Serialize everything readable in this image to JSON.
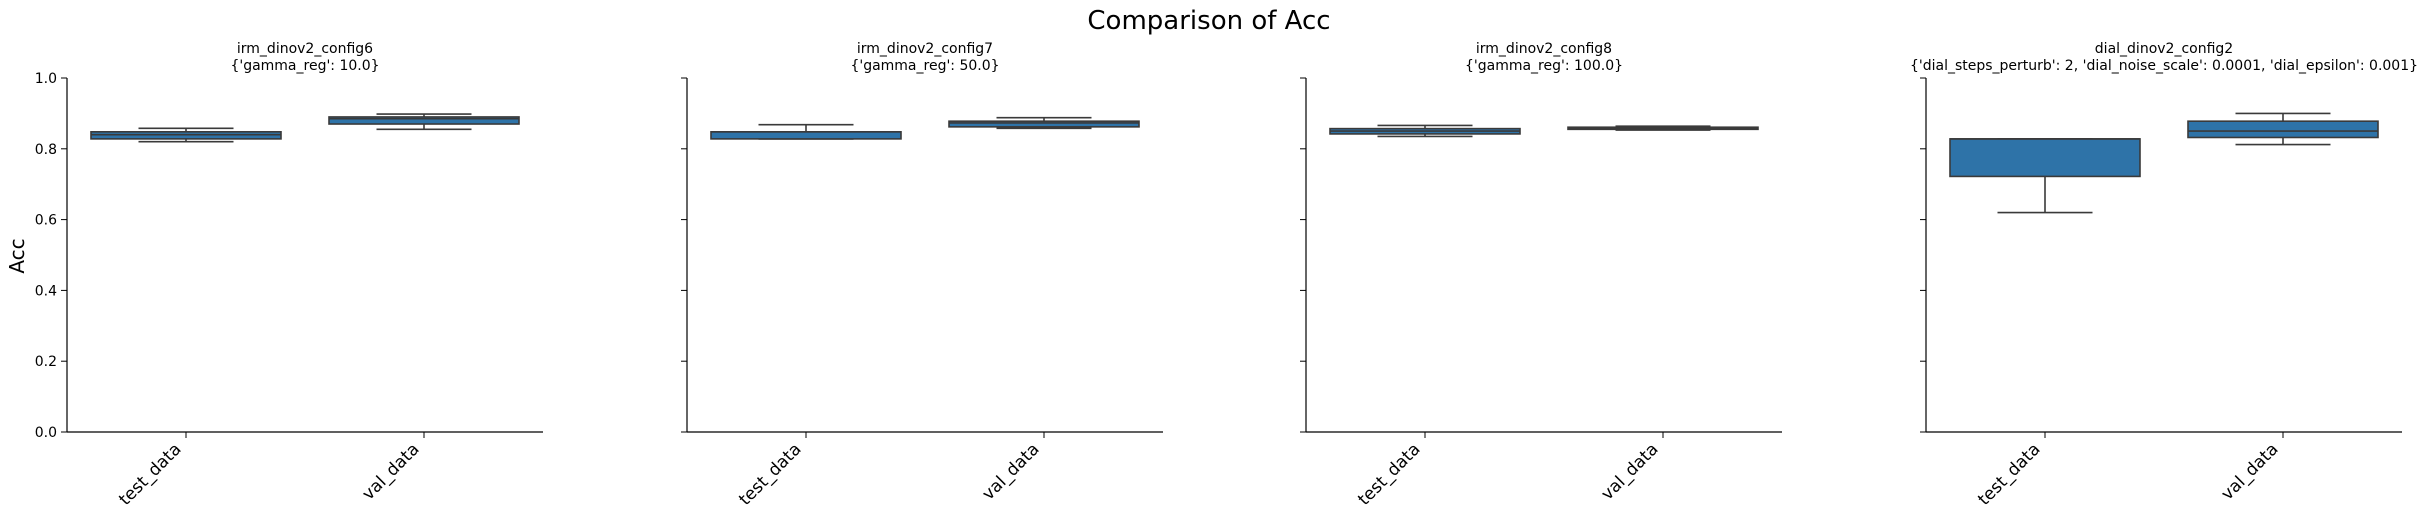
{
  "figure": {
    "title": "Comparison of Acc",
    "ylabel": "Acc",
    "box_color": "#2e73a8",
    "line_color": "#3a3a3a"
  },
  "chart_data": [
    {
      "type": "box",
      "title": "irm_dinov2_config6",
      "subtitle": "{'gamma_reg': 10.0}",
      "categories": [
        "test_data",
        "val_data"
      ],
      "ylim": [
        0,
        1
      ],
      "yticks": [
        "0.0",
        "0.2",
        "0.4",
        "0.6",
        "0.8",
        "1.0"
      ],
      "boxes": [
        {
          "category": "test_data",
          "whislo": 0.82,
          "q1": 0.828,
          "med": 0.84,
          "q3": 0.848,
          "whishi": 0.858
        },
        {
          "category": "val_data",
          "whislo": 0.855,
          "q1": 0.87,
          "med": 0.885,
          "q3": 0.89,
          "whishi": 0.898
        }
      ]
    },
    {
      "type": "box",
      "title": "irm_dinov2_config7",
      "subtitle": "{'gamma_reg': 50.0}",
      "categories": [
        "test_data",
        "val_data"
      ],
      "ylim": [
        0,
        1
      ],
      "yticks": [
        "0.0",
        "0.2",
        "0.4",
        "0.6",
        "0.8",
        "1.0"
      ],
      "boxes": [
        {
          "category": "test_data",
          "whislo": 0.828,
          "q1": 0.828,
          "med": 0.848,
          "q3": 0.848,
          "whishi": 0.868
        },
        {
          "category": "val_data",
          "whislo": 0.858,
          "q1": 0.862,
          "med": 0.873,
          "q3": 0.878,
          "whishi": 0.888
        }
      ]
    },
    {
      "type": "box",
      "title": "irm_dinov2_config8",
      "subtitle": "{'gamma_reg': 100.0}",
      "categories": [
        "test_data",
        "val_data"
      ],
      "ylim": [
        0,
        1
      ],
      "yticks": [
        "0.0",
        "0.2",
        "0.4",
        "0.6",
        "0.8",
        "1.0"
      ],
      "boxes": [
        {
          "category": "test_data",
          "whislo": 0.835,
          "q1": 0.842,
          "med": 0.85,
          "q3": 0.857,
          "whishi": 0.866
        },
        {
          "category": "val_data",
          "whislo": 0.853,
          "q1": 0.855,
          "med": 0.858,
          "q3": 0.861,
          "whishi": 0.864
        }
      ]
    },
    {
      "type": "box",
      "title": "dial_dinov2_config2",
      "subtitle": "{'dial_steps_perturb': 2, 'dial_noise_scale': 0.0001, 'dial_epsilon': 0.001}",
      "categories": [
        "test_data",
        "val_data"
      ],
      "ylim": [
        0,
        1
      ],
      "yticks": [
        "0.0",
        "0.2",
        "0.4",
        "0.6",
        "0.8",
        "1.0"
      ],
      "boxes": [
        {
          "category": "test_data",
          "whislo": 0.62,
          "q1": 0.722,
          "med": 0.828,
          "q3": 0.828,
          "whishi": 0.828
        },
        {
          "category": "val_data",
          "whislo": 0.812,
          "q1": 0.832,
          "med": 0.85,
          "q3": 0.878,
          "whishi": 0.9
        }
      ]
    }
  ]
}
